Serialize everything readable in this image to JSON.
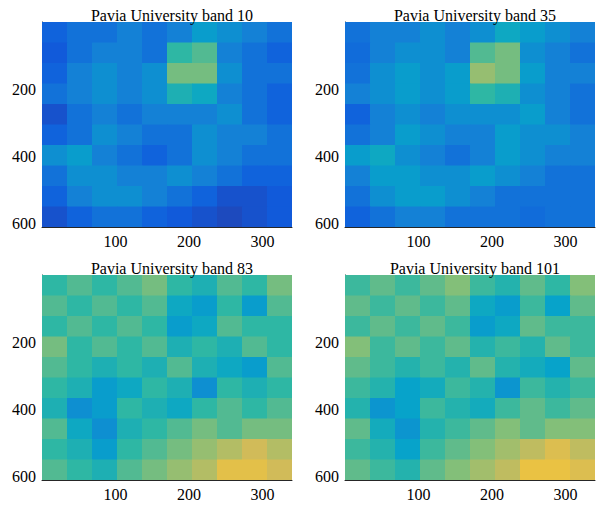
{
  "chart_data": [
    {
      "type": "heatmap",
      "title": "Pavia University band 10",
      "x_edges": [
        0,
        34,
        68,
        102,
        136,
        170,
        204,
        238,
        272,
        306,
        340
      ],
      "y_edges": [
        0,
        61,
        122,
        183,
        244,
        305,
        366,
        427,
        488,
        549,
        610
      ],
      "xlim": [
        0,
        340
      ],
      "ylim": [
        0,
        610
      ],
      "xticks": [
        100,
        200,
        300
      ],
      "yticks": [
        200,
        400,
        600
      ],
      "zlim": [
        0,
        1
      ],
      "cells": [
        [
          0.15,
          0.2,
          0.2,
          0.25,
          0.2,
          0.25,
          0.35,
          0.3,
          0.25,
          0.2
        ],
        [
          0.12,
          0.2,
          0.25,
          0.25,
          0.2,
          0.5,
          0.55,
          0.25,
          0.2,
          0.15
        ],
        [
          0.15,
          0.25,
          0.3,
          0.25,
          0.3,
          0.6,
          0.6,
          0.3,
          0.2,
          0.2
        ],
        [
          0.2,
          0.25,
          0.3,
          0.25,
          0.3,
          0.45,
          0.4,
          0.25,
          0.2,
          0.15
        ],
        [
          0.1,
          0.2,
          0.25,
          0.2,
          0.25,
          0.25,
          0.25,
          0.3,
          0.2,
          0.15
        ],
        [
          0.15,
          0.2,
          0.3,
          0.25,
          0.2,
          0.2,
          0.3,
          0.25,
          0.25,
          0.2
        ],
        [
          0.3,
          0.35,
          0.25,
          0.2,
          0.15,
          0.2,
          0.3,
          0.25,
          0.2,
          0.2
        ],
        [
          0.2,
          0.3,
          0.3,
          0.25,
          0.25,
          0.3,
          0.25,
          0.2,
          0.15,
          0.15
        ],
        [
          0.15,
          0.25,
          0.3,
          0.3,
          0.25,
          0.2,
          0.15,
          0.1,
          0.1,
          0.12
        ],
        [
          0.1,
          0.15,
          0.2,
          0.2,
          0.15,
          0.12,
          0.1,
          0.08,
          0.1,
          0.12
        ]
      ]
    },
    {
      "type": "heatmap",
      "title": "Pavia University band 35",
      "x_edges": [
        0,
        34,
        68,
        102,
        136,
        170,
        204,
        238,
        272,
        306,
        340
      ],
      "y_edges": [
        0,
        61,
        122,
        183,
        244,
        305,
        366,
        427,
        488,
        549,
        610
      ],
      "xlim": [
        0,
        340
      ],
      "ylim": [
        0,
        610
      ],
      "xticks": [
        100,
        200,
        300
      ],
      "yticks": [
        200,
        400,
        600
      ],
      "zlim": [
        0,
        1
      ],
      "cells": [
        [
          0.2,
          0.25,
          0.25,
          0.3,
          0.25,
          0.3,
          0.4,
          0.35,
          0.3,
          0.25
        ],
        [
          0.18,
          0.25,
          0.3,
          0.3,
          0.25,
          0.55,
          0.6,
          0.3,
          0.25,
          0.2
        ],
        [
          0.2,
          0.3,
          0.35,
          0.3,
          0.35,
          0.65,
          0.6,
          0.35,
          0.25,
          0.25
        ],
        [
          0.25,
          0.3,
          0.35,
          0.3,
          0.35,
          0.5,
          0.45,
          0.3,
          0.25,
          0.2
        ],
        [
          0.15,
          0.25,
          0.3,
          0.25,
          0.3,
          0.3,
          0.3,
          0.35,
          0.25,
          0.2
        ],
        [
          0.2,
          0.25,
          0.35,
          0.3,
          0.25,
          0.25,
          0.35,
          0.3,
          0.3,
          0.25
        ],
        [
          0.35,
          0.4,
          0.3,
          0.25,
          0.2,
          0.25,
          0.35,
          0.3,
          0.25,
          0.25
        ],
        [
          0.25,
          0.35,
          0.35,
          0.3,
          0.3,
          0.35,
          0.3,
          0.25,
          0.2,
          0.2
        ],
        [
          0.2,
          0.3,
          0.35,
          0.35,
          0.3,
          0.25,
          0.2,
          0.2,
          0.2,
          0.2
        ],
        [
          0.15,
          0.2,
          0.25,
          0.25,
          0.2,
          0.2,
          0.2,
          0.18,
          0.2,
          0.2
        ]
      ]
    },
    {
      "type": "heatmap",
      "title": "Pavia University band 83",
      "x_edges": [
        0,
        34,
        68,
        102,
        136,
        170,
        204,
        238,
        272,
        306,
        340
      ],
      "y_edges": [
        0,
        61,
        122,
        183,
        244,
        305,
        366,
        427,
        488,
        549,
        610
      ],
      "xlim": [
        0,
        340
      ],
      "ylim": [
        0,
        610
      ],
      "xticks": [
        100,
        200,
        300
      ],
      "yticks": [
        200,
        400,
        600
      ],
      "zlim": [
        0,
        1
      ],
      "cells": [
        [
          0.5,
          0.55,
          0.5,
          0.55,
          0.6,
          0.5,
          0.45,
          0.55,
          0.5,
          0.6
        ],
        [
          0.55,
          0.5,
          0.55,
          0.5,
          0.55,
          0.4,
          0.35,
          0.5,
          0.35,
          0.55
        ],
        [
          0.5,
          0.55,
          0.5,
          0.55,
          0.5,
          0.35,
          0.4,
          0.55,
          0.5,
          0.5
        ],
        [
          0.6,
          0.5,
          0.55,
          0.5,
          0.55,
          0.45,
          0.5,
          0.45,
          0.55,
          0.5
        ],
        [
          0.55,
          0.5,
          0.45,
          0.5,
          0.45,
          0.55,
          0.45,
          0.4,
          0.35,
          0.55
        ],
        [
          0.5,
          0.45,
          0.35,
          0.4,
          0.5,
          0.45,
          0.3,
          0.5,
          0.45,
          0.5
        ],
        [
          0.45,
          0.3,
          0.35,
          0.5,
          0.45,
          0.4,
          0.5,
          0.55,
          0.5,
          0.55
        ],
        [
          0.55,
          0.4,
          0.3,
          0.45,
          0.5,
          0.55,
          0.6,
          0.55,
          0.6,
          0.6
        ],
        [
          0.5,
          0.45,
          0.35,
          0.5,
          0.55,
          0.6,
          0.65,
          0.7,
          0.75,
          0.7
        ],
        [
          0.55,
          0.5,
          0.45,
          0.55,
          0.6,
          0.65,
          0.7,
          0.8,
          0.8,
          0.75
        ]
      ]
    },
    {
      "type": "heatmap",
      "title": "Pavia University band 101",
      "x_edges": [
        0,
        34,
        68,
        102,
        136,
        170,
        204,
        238,
        272,
        306,
        340
      ],
      "y_edges": [
        0,
        61,
        122,
        183,
        244,
        305,
        366,
        427,
        488,
        549,
        610
      ],
      "xlim": [
        0,
        340
      ],
      "ylim": [
        0,
        610
      ],
      "xticks": [
        100,
        200,
        300
      ],
      "yticks": [
        200,
        400,
        600
      ],
      "zlim": [
        0,
        1
      ],
      "cells": [
        [
          0.52,
          0.57,
          0.52,
          0.57,
          0.62,
          0.52,
          0.47,
          0.57,
          0.5,
          0.62
        ],
        [
          0.57,
          0.52,
          0.57,
          0.52,
          0.57,
          0.4,
          0.35,
          0.52,
          0.37,
          0.57
        ],
        [
          0.52,
          0.57,
          0.52,
          0.57,
          0.52,
          0.35,
          0.4,
          0.57,
          0.52,
          0.52
        ],
        [
          0.62,
          0.52,
          0.57,
          0.52,
          0.57,
          0.47,
          0.52,
          0.47,
          0.57,
          0.52
        ],
        [
          0.57,
          0.52,
          0.47,
          0.52,
          0.47,
          0.57,
          0.47,
          0.42,
          0.37,
          0.57
        ],
        [
          0.52,
          0.47,
          0.37,
          0.42,
          0.52,
          0.47,
          0.32,
          0.52,
          0.47,
          0.52
        ],
        [
          0.47,
          0.32,
          0.37,
          0.52,
          0.47,
          0.42,
          0.52,
          0.57,
          0.52,
          0.57
        ],
        [
          0.57,
          0.42,
          0.32,
          0.47,
          0.52,
          0.57,
          0.62,
          0.57,
          0.62,
          0.62
        ],
        [
          0.52,
          0.47,
          0.37,
          0.52,
          0.57,
          0.62,
          0.67,
          0.72,
          0.78,
          0.72
        ],
        [
          0.57,
          0.52,
          0.47,
          0.57,
          0.62,
          0.67,
          0.72,
          0.82,
          0.82,
          0.78
        ]
      ]
    }
  ]
}
